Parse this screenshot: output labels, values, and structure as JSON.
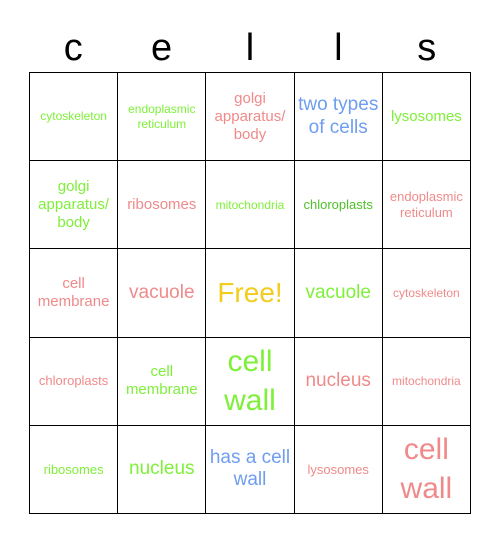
{
  "title_letters": [
    "c",
    "e",
    "l",
    "l",
    "s"
  ],
  "cells": [
    "cytoskeleton",
    "endoplasmic reticulum",
    "golgi apparatus/ body",
    "two types of cells",
    "lysosomes",
    "golgi apparatus/ body",
    "ribosomes",
    "mitochondria",
    "chloroplasts",
    "endoplasmic reticulum",
    "cell membrane",
    "vacuole",
    "Free!",
    "vacuole",
    "cytoskeleton",
    "chloroplasts",
    "cell membrane",
    "cell wall",
    "nucleus",
    "mitochondria",
    "ribosomes",
    "nucleus",
    "has a cell wall",
    "lysosomes",
    "cell wall"
  ],
  "colors": {
    "green": "#7ff03a",
    "dark_green": "#4fc12a",
    "pink": "#f08a8a",
    "blue": "#6f9df0",
    "gold": "#f2cc1e"
  }
}
